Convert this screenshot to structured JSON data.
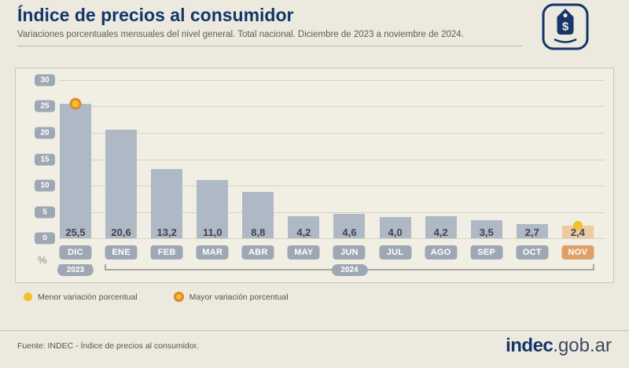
{
  "header": {
    "title": "Índice de precios al consumidor",
    "subtitle": "Variaciones porcentuales mensuales del nivel general. Total nacional. Diciembre de 2023 a noviembre de 2024."
  },
  "colors": {
    "navy": "#16356b",
    "page_bg": "#ece9de",
    "panel_bg": "#f1eee4",
    "border": "#c9c5b7",
    "text_gray": "#5e5e55"
  },
  "chart_data": {
    "type": "bar",
    "title": "Índice de precios al consumidor",
    "categories": [
      "DIC",
      "ENE",
      "FEB",
      "MAR",
      "ABR",
      "MAY",
      "JUN",
      "JUL",
      "AGO",
      "SEP",
      "OCT",
      "NOV"
    ],
    "values": [
      25.5,
      20.6,
      13.2,
      11.0,
      8.8,
      4.2,
      4.6,
      4.0,
      4.2,
      3.5,
      2.7,
      2.4
    ],
    "value_labels": [
      "25,5",
      "20,6",
      "13,2",
      "11,0",
      "8,8",
      "4,2",
      "4,6",
      "4,0",
      "4,2",
      "3,5",
      "2,7",
      "2,4"
    ],
    "xlabel": "",
    "ylabel": "%",
    "ylim": [
      0,
      30
    ],
    "yticks": [
      0,
      5,
      10,
      15,
      20,
      25,
      30
    ],
    "grid": true,
    "year_groups": [
      {
        "label": "2023",
        "from": 0,
        "to": 0
      },
      {
        "label": "2024",
        "from": 1,
        "to": 11
      }
    ],
    "highlight": {
      "max_index": 0,
      "max_month": "DIC",
      "min_index": 11,
      "min_month": "NOV"
    },
    "colors": {
      "bar": "#afb9c6",
      "bar_highlight": "#edcba1",
      "month_badge": "#9ea8b4",
      "month_badge_highlight": "#dfa066",
      "dot_yellow": "#f1c12f",
      "dot_ring_orange": "#e0882b",
      "gridline": "#d6d2c6",
      "value_text": "#3c4452"
    }
  },
  "legend": [
    {
      "label": "Menor variación porcentual",
      "marker": "yellow-dot"
    },
    {
      "label": "Mayor variación porcentual",
      "marker": "ringed-dot"
    }
  ],
  "footer": {
    "source": "Fuente: INDEC - Índice de precios al consumidor.",
    "site_name": "indec",
    "site_suffix": ".gob.ar"
  }
}
